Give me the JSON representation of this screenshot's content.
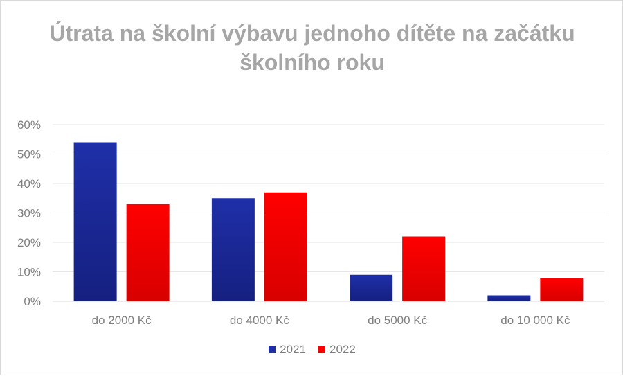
{
  "chart_data": {
    "type": "bar",
    "title": "Útrata na školní výbavu jednoho dítěte na začátku školního roku",
    "categories": [
      "do 2000 Kč",
      "do 4000 Kč",
      "do 5000 Kč",
      "do 10 000 Kč"
    ],
    "series": [
      {
        "name": "2021",
        "values": [
          54,
          35,
          9,
          2
        ],
        "color": "#1f2fa8"
      },
      {
        "name": "2022",
        "values": [
          33,
          37,
          22,
          8
        ],
        "color": "#ff0000"
      }
    ],
    "y_ticks": [
      "0%",
      "10%",
      "20%",
      "30%",
      "40%",
      "50%",
      "60%"
    ],
    "ylim": [
      0,
      60
    ],
    "grid": true,
    "legend_position": "bottom"
  }
}
